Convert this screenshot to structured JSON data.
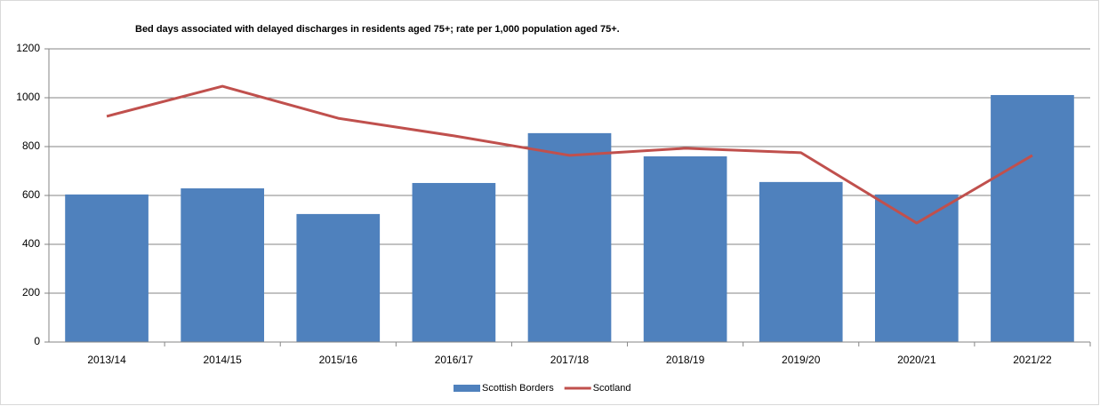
{
  "chart_data": {
    "type": "bar",
    "title": "Bed days associated with delayed discharges in residents aged 75+; rate per 1,000 population aged 75+.",
    "categories": [
      "2013/14",
      "2014/15",
      "2015/16",
      "2016/17",
      "2017/18",
      "2018/19",
      "2019/20",
      "2020/21",
      "2021/22"
    ],
    "series": [
      {
        "name": "Scottish Borders",
        "type": "bar",
        "color": "#4f81bd",
        "values": [
          604,
          629,
          524,
          651,
          855,
          760,
          655,
          604,
          1011
        ]
      },
      {
        "name": "Scotland",
        "type": "line",
        "color": "#c0504d",
        "values": [
          924,
          1047,
          916,
          844,
          764,
          793,
          775,
          487,
          764
        ]
      }
    ],
    "ylim": [
      0,
      1200
    ],
    "yticks": [
      0,
      200,
      400,
      600,
      800,
      1000,
      1200
    ],
    "grid": true,
    "legend": "bottom"
  }
}
